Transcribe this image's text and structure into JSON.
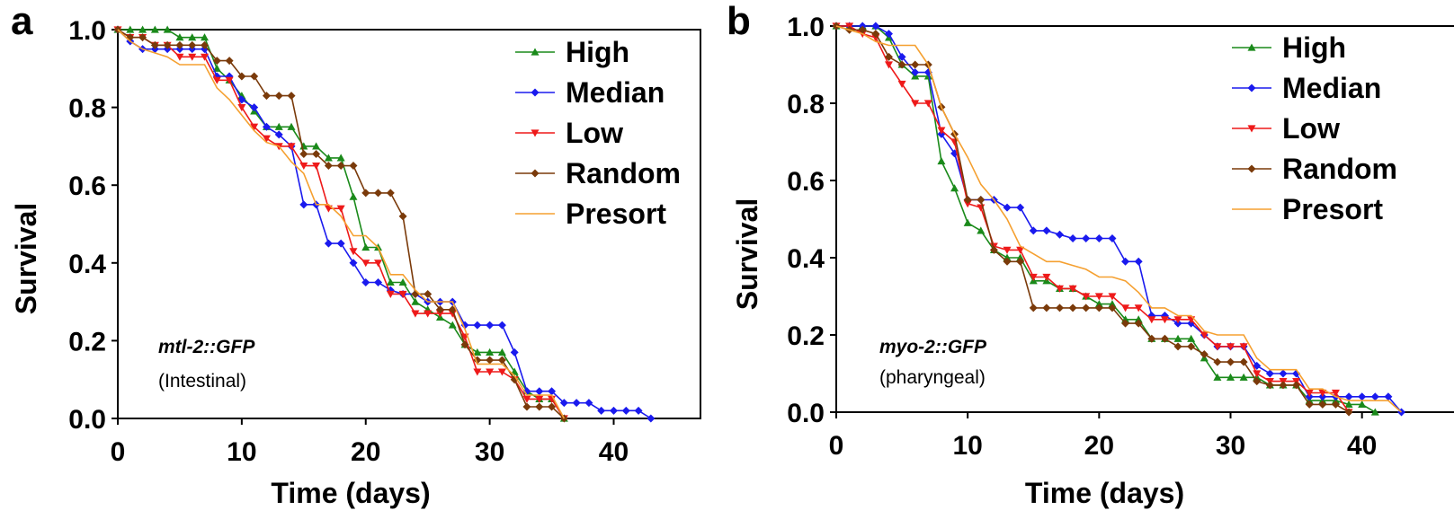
{
  "chart_data": [
    {
      "panel": "a",
      "type": "line",
      "xlabel": "Time (days)",
      "ylabel": "Survival",
      "xlim": [
        0,
        47
      ],
      "ylim": [
        0,
        1.0
      ],
      "xticks": [
        "0",
        "10",
        "20",
        "30",
        "40"
      ],
      "yticks": [
        "0.0",
        "0.2",
        "0.4",
        "0.6",
        "0.8",
        "1.0"
      ],
      "annotation": {
        "strain": "mtl-2::GFP",
        "tissue": "(Intestinal)"
      },
      "legend_position": "top-right",
      "series": [
        {
          "name": "High",
          "color": "#1a8a1a",
          "marker": "triangle-up",
          "x": [
            0,
            1,
            2,
            3,
            4,
            5,
            6,
            7,
            8,
            9,
            10,
            11,
            12,
            13,
            14,
            15,
            16,
            17,
            18,
            19,
            20,
            21,
            22,
            23,
            24,
            25,
            26,
            27,
            28,
            29,
            30,
            31,
            32,
            33,
            34,
            35,
            36
          ],
          "y": [
            1.0,
            1.0,
            1.0,
            1.0,
            1.0,
            0.98,
            0.98,
            0.98,
            0.9,
            0.87,
            0.83,
            0.79,
            0.75,
            0.75,
            0.75,
            0.7,
            0.7,
            0.67,
            0.67,
            0.57,
            0.44,
            0.44,
            0.35,
            0.35,
            0.3,
            0.28,
            0.26,
            0.24,
            0.19,
            0.17,
            0.17,
            0.17,
            0.12,
            0.07,
            0.05,
            0.05,
            0.0
          ]
        },
        {
          "name": "Median",
          "color": "#1a1aee",
          "marker": "diamond",
          "x": [
            0,
            1,
            2,
            3,
            4,
            5,
            6,
            7,
            8,
            9,
            10,
            11,
            12,
            13,
            14,
            15,
            16,
            17,
            18,
            19,
            20,
            21,
            22,
            23,
            24,
            25,
            26,
            27,
            28,
            29,
            30,
            31,
            32,
            33,
            34,
            35,
            36,
            37,
            38,
            39,
            40,
            41,
            42,
            43
          ],
          "y": [
            1.0,
            0.97,
            0.95,
            0.95,
            0.95,
            0.95,
            0.95,
            0.95,
            0.88,
            0.88,
            0.82,
            0.8,
            0.75,
            0.73,
            0.7,
            0.55,
            0.55,
            0.45,
            0.45,
            0.4,
            0.35,
            0.35,
            0.33,
            0.32,
            0.32,
            0.3,
            0.3,
            0.3,
            0.24,
            0.24,
            0.24,
            0.24,
            0.17,
            0.07,
            0.07,
            0.07,
            0.04,
            0.04,
            0.04,
            0.02,
            0.02,
            0.02,
            0.02,
            0.0
          ]
        },
        {
          "name": "Low",
          "color": "#ee1a1a",
          "marker": "triangle-down",
          "x": [
            0,
            1,
            2,
            3,
            4,
            5,
            6,
            7,
            8,
            9,
            10,
            11,
            12,
            13,
            14,
            15,
            16,
            17,
            18,
            19,
            20,
            21,
            22,
            23,
            24,
            25,
            26,
            27,
            28,
            29,
            30,
            31,
            32,
            33,
            34,
            35,
            36
          ],
          "y": [
            1.0,
            0.98,
            0.98,
            0.96,
            0.96,
            0.93,
            0.93,
            0.93,
            0.87,
            0.87,
            0.8,
            0.75,
            0.72,
            0.7,
            0.7,
            0.65,
            0.65,
            0.54,
            0.54,
            0.43,
            0.4,
            0.4,
            0.32,
            0.32,
            0.27,
            0.27,
            0.27,
            0.27,
            0.21,
            0.12,
            0.12,
            0.12,
            0.1,
            0.05,
            0.05,
            0.05,
            0.0
          ]
        },
        {
          "name": "Random",
          "color": "#7a3a0a",
          "marker": "diamond",
          "x": [
            0,
            1,
            2,
            3,
            4,
            5,
            6,
            7,
            8,
            9,
            10,
            11,
            12,
            13,
            14,
            15,
            16,
            17,
            18,
            19,
            20,
            21,
            22,
            23,
            24,
            25,
            26,
            27,
            28,
            29,
            30,
            31,
            32,
            33,
            34,
            35,
            36
          ],
          "y": [
            1.0,
            0.98,
            0.98,
            0.96,
            0.96,
            0.96,
            0.96,
            0.96,
            0.92,
            0.92,
            0.88,
            0.88,
            0.83,
            0.83,
            0.83,
            0.68,
            0.68,
            0.65,
            0.65,
            0.65,
            0.58,
            0.58,
            0.58,
            0.52,
            0.32,
            0.32,
            0.28,
            0.28,
            0.19,
            0.15,
            0.15,
            0.15,
            0.1,
            0.03,
            0.03,
            0.03,
            0.0
          ]
        },
        {
          "name": "Presort",
          "color": "#f5a030",
          "marker": "none",
          "x": [
            0,
            1,
            2,
            3,
            4,
            5,
            6,
            7,
            8,
            9,
            10,
            11,
            12,
            13,
            14,
            15,
            16,
            17,
            18,
            19,
            20,
            21,
            22,
            23,
            24,
            25,
            26,
            27,
            28,
            29,
            30,
            31,
            32,
            33,
            34,
            35,
            36
          ],
          "y": [
            1.0,
            0.97,
            0.95,
            0.94,
            0.93,
            0.91,
            0.91,
            0.91,
            0.85,
            0.82,
            0.78,
            0.74,
            0.71,
            0.7,
            0.66,
            0.63,
            0.55,
            0.55,
            0.52,
            0.47,
            0.47,
            0.44,
            0.37,
            0.37,
            0.33,
            0.3,
            0.3,
            0.3,
            0.23,
            0.14,
            0.14,
            0.14,
            0.11,
            0.06,
            0.06,
            0.06,
            0.0
          ]
        }
      ]
    },
    {
      "panel": "b",
      "type": "line",
      "xlabel": "Time (days)",
      "ylabel": "Survival",
      "xlim": [
        0,
        47
      ],
      "ylim": [
        0,
        1.0
      ],
      "xticks": [
        "0",
        "10",
        "20",
        "30",
        "40"
      ],
      "yticks": [
        "0.0",
        "0.2",
        "0.4",
        "0.6",
        "0.8",
        "1.0"
      ],
      "annotation": {
        "strain": "myo-2::GFP",
        "tissue": "(pharyngeal)"
      },
      "legend_position": "top-right",
      "series": [
        {
          "name": "High",
          "color": "#1a8a1a",
          "marker": "triangle-up",
          "x": [
            0,
            1,
            2,
            3,
            4,
            5,
            6,
            7,
            8,
            9,
            10,
            11,
            12,
            13,
            14,
            15,
            16,
            17,
            18,
            19,
            20,
            21,
            22,
            23,
            24,
            25,
            26,
            27,
            28,
            29,
            30,
            31,
            32,
            33,
            34,
            35,
            36,
            37,
            38,
            39,
            40,
            41
          ],
          "y": [
            1.0,
            1.0,
            1.0,
            1.0,
            0.97,
            0.9,
            0.87,
            0.87,
            0.65,
            0.58,
            0.49,
            0.47,
            0.42,
            0.4,
            0.4,
            0.34,
            0.34,
            0.32,
            0.32,
            0.3,
            0.28,
            0.28,
            0.24,
            0.24,
            0.19,
            0.19,
            0.19,
            0.19,
            0.14,
            0.09,
            0.09,
            0.09,
            0.09,
            0.07,
            0.07,
            0.07,
            0.03,
            0.03,
            0.03,
            0.02,
            0.02,
            0.0
          ]
        },
        {
          "name": "Median",
          "color": "#1a1aee",
          "marker": "diamond",
          "x": [
            0,
            1,
            2,
            3,
            4,
            5,
            6,
            7,
            8,
            9,
            10,
            11,
            12,
            13,
            14,
            15,
            16,
            17,
            18,
            19,
            20,
            21,
            22,
            23,
            24,
            25,
            26,
            27,
            28,
            29,
            30,
            31,
            32,
            33,
            34,
            35,
            36,
            37,
            38,
            39,
            40,
            41,
            42,
            43
          ],
          "y": [
            1.0,
            1.0,
            1.0,
            1.0,
            0.98,
            0.92,
            0.88,
            0.88,
            0.72,
            0.67,
            0.55,
            0.55,
            0.55,
            0.53,
            0.53,
            0.47,
            0.47,
            0.46,
            0.45,
            0.45,
            0.45,
            0.45,
            0.39,
            0.39,
            0.25,
            0.25,
            0.23,
            0.23,
            0.2,
            0.17,
            0.17,
            0.17,
            0.12,
            0.1,
            0.1,
            0.1,
            0.04,
            0.04,
            0.04,
            0.04,
            0.04,
            0.04,
            0.04,
            0.0
          ]
        },
        {
          "name": "Low",
          "color": "#ee1a1a",
          "marker": "triangle-down",
          "x": [
            0,
            1,
            2,
            3,
            4,
            5,
            6,
            7,
            8,
            9,
            10,
            11,
            12,
            13,
            14,
            15,
            16,
            17,
            18,
            19,
            20,
            21,
            22,
            23,
            24,
            25,
            26,
            27,
            28,
            29,
            30,
            31,
            32,
            33,
            34,
            35,
            36,
            37,
            38,
            39
          ],
          "y": [
            1.0,
            1.0,
            0.98,
            0.97,
            0.9,
            0.85,
            0.8,
            0.8,
            0.73,
            0.7,
            0.54,
            0.53,
            0.43,
            0.42,
            0.42,
            0.35,
            0.35,
            0.32,
            0.32,
            0.3,
            0.3,
            0.3,
            0.27,
            0.27,
            0.24,
            0.24,
            0.24,
            0.24,
            0.2,
            0.17,
            0.17,
            0.17,
            0.1,
            0.08,
            0.08,
            0.08,
            0.05,
            0.05,
            0.05,
            0.0
          ]
        },
        {
          "name": "Random",
          "color": "#7a3a0a",
          "marker": "diamond",
          "x": [
            0,
            1,
            2,
            3,
            4,
            5,
            6,
            7,
            8,
            9,
            10,
            11,
            12,
            13,
            14,
            15,
            16,
            17,
            18,
            19,
            20,
            21,
            22,
            23,
            24,
            25,
            26,
            27,
            28,
            29,
            30,
            31,
            32,
            33,
            34,
            35,
            36,
            37,
            38,
            39
          ],
          "y": [
            1.0,
            0.99,
            0.99,
            0.98,
            0.92,
            0.9,
            0.9,
            0.9,
            0.79,
            0.72,
            0.55,
            0.55,
            0.42,
            0.39,
            0.39,
            0.27,
            0.27,
            0.27,
            0.27,
            0.27,
            0.27,
            0.27,
            0.23,
            0.23,
            0.19,
            0.19,
            0.17,
            0.17,
            0.15,
            0.13,
            0.13,
            0.13,
            0.08,
            0.07,
            0.07,
            0.07,
            0.02,
            0.02,
            0.02,
            0.0
          ]
        },
        {
          "name": "Presort",
          "color": "#f5a030",
          "marker": "none",
          "x": [
            0,
            1,
            2,
            3,
            4,
            5,
            6,
            7,
            8,
            9,
            10,
            11,
            12,
            13,
            14,
            15,
            16,
            17,
            18,
            19,
            20,
            21,
            22,
            23,
            24,
            25,
            26,
            27,
            28,
            29,
            30,
            31,
            32,
            33,
            34,
            35,
            36,
            37,
            38,
            39,
            40,
            41,
            42,
            43
          ],
          "y": [
            1.0,
            0.99,
            0.98,
            0.96,
            0.95,
            0.95,
            0.95,
            0.9,
            0.79,
            0.72,
            0.66,
            0.59,
            0.55,
            0.5,
            0.43,
            0.41,
            0.39,
            0.39,
            0.38,
            0.37,
            0.35,
            0.35,
            0.34,
            0.31,
            0.27,
            0.27,
            0.25,
            0.25,
            0.21,
            0.2,
            0.2,
            0.2,
            0.14,
            0.11,
            0.11,
            0.11,
            0.06,
            0.06,
            0.04,
            0.03,
            0.03,
            0.03,
            0.03,
            0.0
          ]
        }
      ]
    }
  ]
}
